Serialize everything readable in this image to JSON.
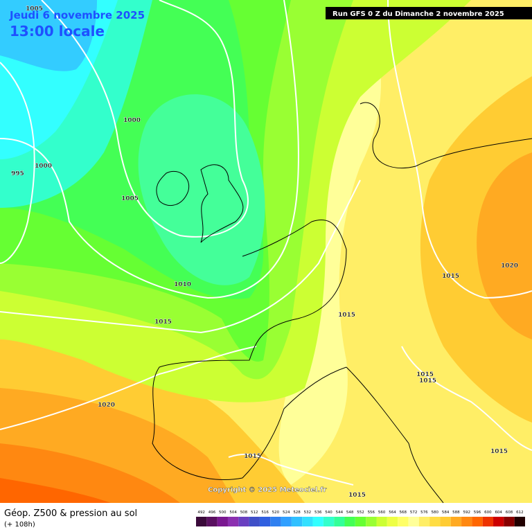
{
  "header": {
    "date": "Jeudi 6 novembre 2025",
    "time": "13:00 locale",
    "run": "Run GFS 0 Z du Dimanche 2 novembre 2025"
  },
  "isobar_labels": [
    1005,
    1000,
    995,
    1000,
    1005,
    1010,
    1015,
    1020,
    1015,
    1015,
    1015,
    1015,
    1020,
    1015,
    1015,
    1015
  ],
  "copyright": "Copyright © 2025 Meteociel.fr",
  "footer": {
    "title": "Géop. Z500 & pression au sol",
    "lead": "(+ 108h)"
  },
  "colorbar": {
    "ticks": [
      492,
      496,
      500,
      504,
      508,
      512,
      516,
      520,
      524,
      528,
      532,
      536,
      540,
      544,
      548,
      552,
      556,
      560,
      564,
      568,
      572,
      576,
      580,
      584,
      588,
      592,
      596,
      600,
      604,
      608,
      612
    ],
    "colors": [
      "#3a0a3a",
      "#5a1060",
      "#7a1890",
      "#8c30b0",
      "#6a40c0",
      "#4050c8",
      "#3060e0",
      "#3080f0",
      "#30a0ff",
      "#30c0ff",
      "#33e0ff",
      "#33ffff",
      "#33ffcc",
      "#33ff99",
      "#44ff55",
      "#66ff33",
      "#99ff33",
      "#ccff33",
      "#eeff44",
      "#ffff66",
      "#ffff99",
      "#ffee66",
      "#ffdd44",
      "#ffcc33",
      "#ffaa22",
      "#ff8811",
      "#ff6600",
      "#ee3300",
      "#cc0000",
      "#880000",
      "#220000"
    ]
  }
}
